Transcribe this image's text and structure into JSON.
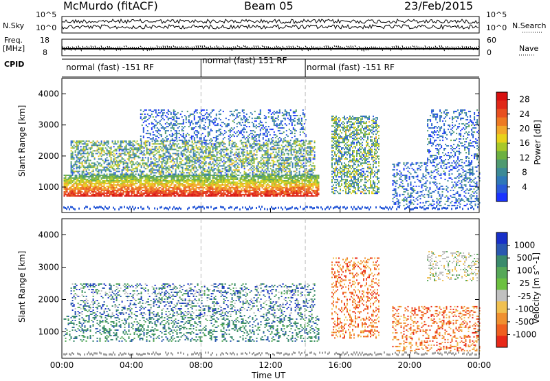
{
  "header": {
    "station": "McMurdo (fitACF)",
    "beam": "Beam 05",
    "date": "23/Feb/2015"
  },
  "top_panels": {
    "nsky_label": "N.Sky",
    "nsky_ticks": [
      "10^5",
      "10^0"
    ],
    "nsearch_label": "N.Search",
    "nsearch_ticks": [
      "10^5",
      "10^0"
    ],
    "freq_label_1": "Freq.",
    "freq_label_2": "[MHz]",
    "freq_ticks": [
      "18",
      "8"
    ],
    "nave_label": "Nave",
    "nave_ticks": [
      "60",
      "0"
    ],
    "cpid_label": "CPID",
    "cpid_segments": [
      {
        "label": "normal (fast) -151 RF",
        "start_hr": 0.0
      },
      {
        "label": "normal (fast) 151 RF",
        "start_hr": 8.0
      },
      {
        "label": "normal (fast) -151 RF",
        "start_hr": 14.0
      }
    ]
  },
  "chart_data": [
    {
      "type": "heatmap",
      "panel": "power",
      "ylabel": "Slant Range [km]",
      "xlabel": "Time UT",
      "xlim_hours": [
        0,
        24
      ],
      "ylim": [
        180,
        4500
      ],
      "x_ticks": [
        "00:00",
        "04:00",
        "08:00",
        "12:00",
        "16:00",
        "20:00",
        "00:00"
      ],
      "y_ticks": [
        1000,
        2000,
        3000,
        4000
      ],
      "colorbar": {
        "label": "Power [dB]",
        "ticks": [
          "4",
          "8",
          "12",
          "16",
          "20",
          "24",
          "28"
        ],
        "range": [
          0,
          30
        ],
        "colors": [
          "#1a33ff",
          "#2a5bd8",
          "#2f78b8",
          "#3c8a96",
          "#4f9a70",
          "#6cb040",
          "#a8c828",
          "#e8d21a",
          "#f2a82a",
          "#ee7a22",
          "#e85020",
          "#e02818",
          "#d81010"
        ]
      },
      "scatter_regions": [
        {
          "t_start": 0.1,
          "t_end": 14.8,
          "r_low": 700,
          "r_high": 1400,
          "level": "high"
        },
        {
          "t_start": 0.5,
          "t_end": 14.5,
          "r_low": 1400,
          "r_high": 2500,
          "level": "mid"
        },
        {
          "t_start": 4.5,
          "t_end": 14.0,
          "r_low": 2500,
          "r_high": 3500,
          "level": "low"
        },
        {
          "t_start": 15.5,
          "t_end": 18.2,
          "r_low": 800,
          "r_high": 3300,
          "level": "mid"
        },
        {
          "t_start": 19.0,
          "t_end": 24.0,
          "r_low": 400,
          "r_high": 1800,
          "level": "low"
        },
        {
          "t_start": 21.0,
          "t_end": 24.0,
          "r_low": 1800,
          "r_high": 3500,
          "level": "low"
        }
      ]
    },
    {
      "type": "heatmap",
      "panel": "velocity",
      "ylabel": "Slant Range [km]",
      "xlabel": "Time UT",
      "xlim_hours": [
        0,
        24
      ],
      "ylim": [
        180,
        4500
      ],
      "x_ticks": [
        "00:00",
        "04:00",
        "08:00",
        "12:00",
        "16:00",
        "20:00",
        "00:00"
      ],
      "y_ticks": [
        1000,
        2000,
        3000,
        4000
      ],
      "colorbar": {
        "label": "Velocity [m s^-1]",
        "ticks": [
          "1000",
          "500",
          "100",
          "25",
          "-25",
          "-100",
          "-500",
          "-1000"
        ],
        "colors": [
          "#1830c8",
          "#2a58b0",
          "#3a8a6c",
          "#56a858",
          "#6cc040",
          "#c0c0c0",
          "#f0c050",
          "#f09030",
          "#f06020",
          "#e82818"
        ]
      },
      "scatter_regions": [
        {
          "t_start": 0.1,
          "t_end": 14.8,
          "r_low": 700,
          "r_high": 1500,
          "vel": "green"
        },
        {
          "t_start": 0.5,
          "t_end": 14.5,
          "r_low": 1500,
          "r_high": 2500,
          "vel": "mixed-blue"
        },
        {
          "t_start": 15.5,
          "t_end": 18.2,
          "r_low": 800,
          "r_high": 3300,
          "vel": "orange"
        },
        {
          "t_start": 19.0,
          "t_end": 24.0,
          "r_low": 400,
          "r_high": 1800,
          "vel": "orange"
        },
        {
          "t_start": 21.0,
          "t_end": 24.0,
          "r_low": 2600,
          "r_high": 3500,
          "vel": "grey"
        }
      ]
    }
  ]
}
